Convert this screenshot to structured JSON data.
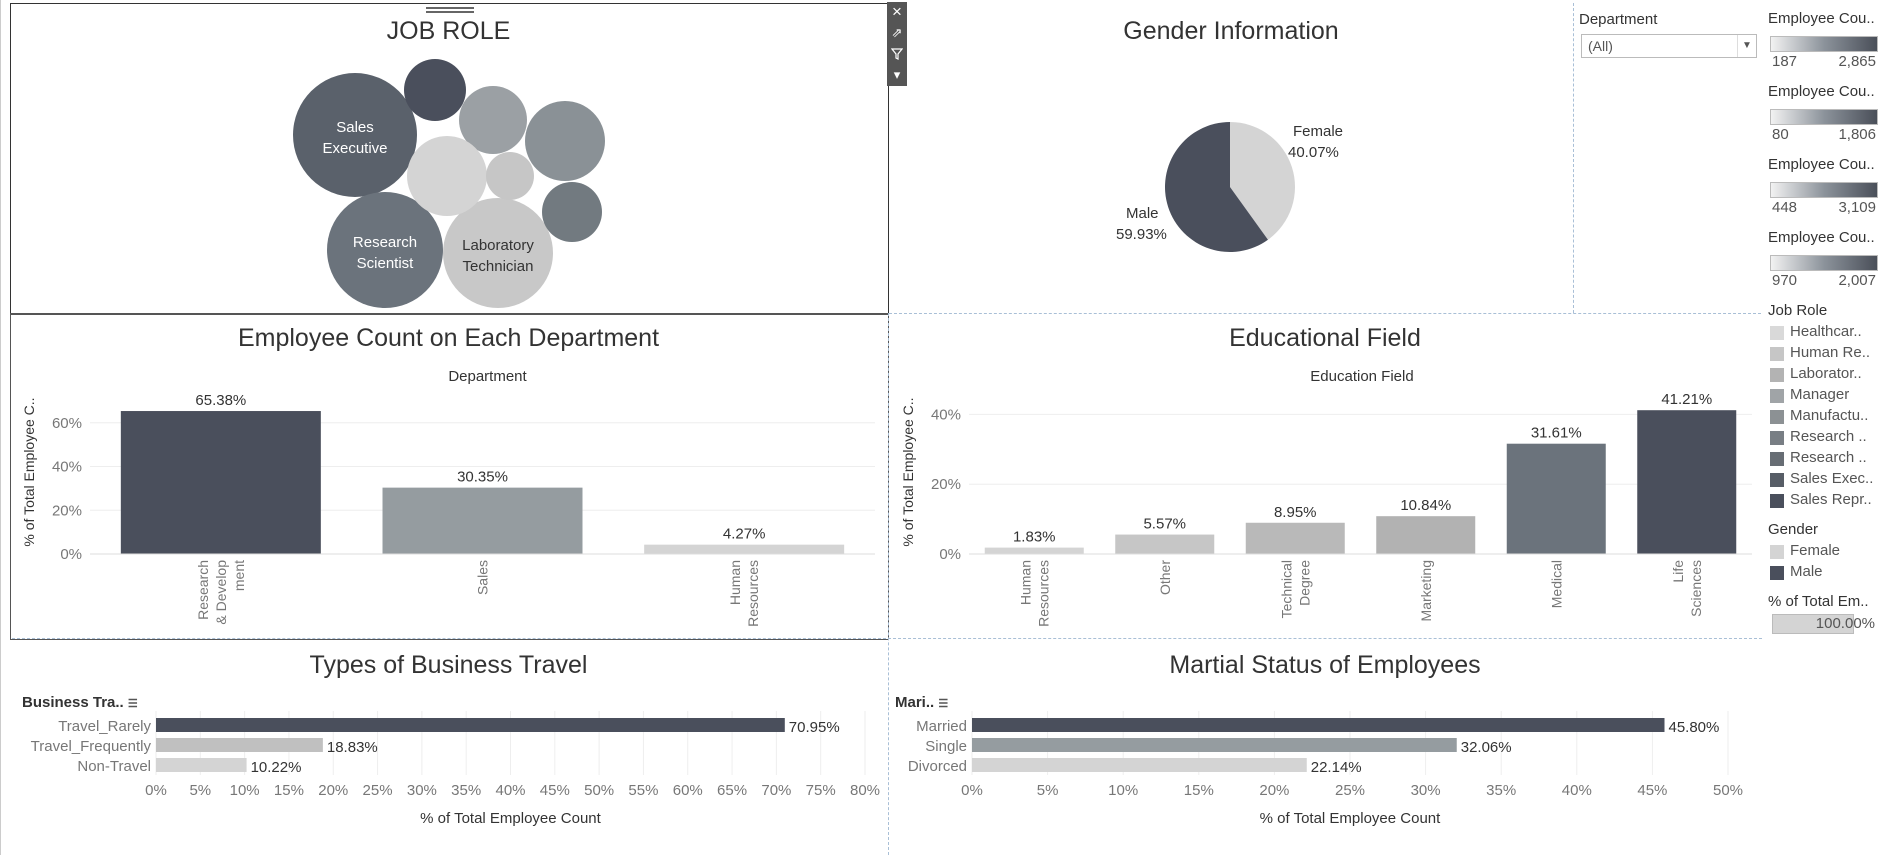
{
  "job_role": {
    "title": "JOB ROLE",
    "bubble_labels": [
      "Sales\nExecutive",
      "Research\nScientist",
      "Laboratory\nTechnician"
    ],
    "bubbles": [
      {
        "label_lines": [
          "Sales",
          "Executive"
        ],
        "color": "#5a616b",
        "text_color": "#ffffff"
      },
      {
        "label_lines": [
          "Research",
          "Scientist"
        ],
        "color": "#6b737c",
        "text_color": "#ffffff"
      },
      {
        "label_lines": [
          "Laboratory",
          "Technician"
        ],
        "color": "#c8c8c8",
        "text_color": "#333333"
      },
      {
        "label_lines": [],
        "color": "#4a4f5c"
      },
      {
        "label_lines": [],
        "color": "#9ba0a4"
      },
      {
        "label_lines": [],
        "color": "#8a9196"
      },
      {
        "label_lines": [],
        "color": "#d4d4d4"
      },
      {
        "label_lines": [],
        "color": "#c6c6c6"
      },
      {
        "label_lines": [],
        "color": "#727a80"
      }
    ],
    "tools": [
      "×",
      "⇗",
      "▼",
      "▾"
    ]
  },
  "gender": {
    "title": "Gender Information",
    "chart_data": {
      "type": "pie",
      "slices": [
        {
          "label": "Female",
          "pct_text": "40.07%",
          "value": 40.07,
          "color": "#d4d4d4"
        },
        {
          "label": "Male",
          "pct_text": "59.93%",
          "value": 59.93,
          "color": "#4a4f5c"
        }
      ]
    }
  },
  "department_filter": {
    "label": "Department",
    "value": "(All)"
  },
  "dept_chart": {
    "title": "Employee Count on Each Department",
    "subtitle": "Department",
    "ylabel": "% of Total Employee C..",
    "chart_data": {
      "type": "bar",
      "categories": [
        [
          "Research",
          "& Develop",
          "ment"
        ],
        [
          "Sales"
        ],
        [
          "Human",
          "Resources"
        ]
      ],
      "values": [
        65.38,
        30.35,
        4.27
      ],
      "labels": [
        "65.38%",
        "30.35%",
        "4.27%"
      ],
      "colors": [
        "#4a4f5c",
        "#959ca0",
        "#d4d4d4"
      ],
      "yticks": [
        "60%",
        "40%",
        "20%",
        "0%"
      ],
      "ytick_values": [
        60,
        40,
        20,
        0
      ],
      "ylim": [
        0,
        75
      ]
    }
  },
  "edu_chart": {
    "title": "Educational Field",
    "subtitle": "Education Field",
    "ylabel": "% of Total Employee C..",
    "chart_data": {
      "type": "bar",
      "categories": [
        [
          "Human",
          "Resources"
        ],
        [
          "Other"
        ],
        [
          "Technical",
          "Degree"
        ],
        [
          "Marketing"
        ],
        [
          "Medical"
        ],
        [
          "Life",
          "Sciences"
        ]
      ],
      "values": [
        1.83,
        5.57,
        8.95,
        10.84,
        31.61,
        41.21
      ],
      "labels": [
        "1.83%",
        "5.57%",
        "8.95%",
        "10.84%",
        "31.61%",
        "41.21%"
      ],
      "colors": [
        "#d4d4d4",
        "#c6c6c6",
        "#b9b9b9",
        "#b2b2b2",
        "#6b737c",
        "#4a4f5c"
      ],
      "yticks": [
        "40%",
        "20%",
        "0%"
      ],
      "ytick_values": [
        40,
        20,
        0
      ],
      "ylim": [
        0,
        47
      ]
    }
  },
  "travel_chart": {
    "title": "Types of Business Travel",
    "header": "Business Tra..",
    "xlabel": "% of Total Employee Count",
    "chart_data": {
      "type": "bar",
      "orientation": "horizontal",
      "categories": [
        "Travel_Rarely",
        "Travel_Frequently",
        "Non-Travel"
      ],
      "values": [
        70.95,
        18.83,
        10.22
      ],
      "labels": [
        "70.95%",
        "18.83%",
        "10.22%"
      ],
      "colors": [
        "#4a4f5c",
        "#c0c0c0",
        "#d4d4d4"
      ],
      "xticks": [
        "0%",
        "5%",
        "10%",
        "15%",
        "20%",
        "25%",
        "30%",
        "35%",
        "40%",
        "45%",
        "50%",
        "55%",
        "60%",
        "65%",
        "70%",
        "75%",
        "80%"
      ],
      "xtick_values": [
        0,
        5,
        10,
        15,
        20,
        25,
        30,
        35,
        40,
        45,
        50,
        55,
        60,
        65,
        70,
        75,
        80
      ],
      "xlim": [
        0,
        80
      ]
    }
  },
  "marital_chart": {
    "title": "Martial Status of Employees",
    "header": "Mari..",
    "xlabel": "% of Total Employee Count",
    "chart_data": {
      "type": "bar",
      "orientation": "horizontal",
      "categories": [
        "Married",
        "Single",
        "Divorced"
      ],
      "values": [
        45.8,
        32.06,
        22.14
      ],
      "labels": [
        "45.80%",
        "32.06%",
        "22.14%"
      ],
      "colors": [
        "#4a4f5c",
        "#959ca0",
        "#d4d4d4"
      ],
      "xticks": [
        "0%",
        "5%",
        "10%",
        "15%",
        "20%",
        "25%",
        "30%",
        "35%",
        "40%",
        "45%",
        "50%"
      ],
      "xtick_values": [
        0,
        5,
        10,
        15,
        20,
        25,
        30,
        35,
        40,
        45,
        50
      ],
      "xlim": [
        0,
        50
      ]
    }
  },
  "legends": {
    "employee_count_ranges": [
      {
        "title": "Employee Cou..",
        "min": "187",
        "max": "2,865"
      },
      {
        "title": "Employee Cou..",
        "min": "80",
        "max": "1,806"
      },
      {
        "title": "Employee Cou..",
        "min": "448",
        "max": "3,109"
      },
      {
        "title": "Employee Cou..",
        "min": "970",
        "max": "2,007"
      }
    ],
    "job_role": {
      "title": "Job Role",
      "items": [
        {
          "label": "Healthcar..",
          "color": "#d9d9d9"
        },
        {
          "label": "Human Re..",
          "color": "#c6c6c6"
        },
        {
          "label": "Laborator..",
          "color": "#b3b3b3"
        },
        {
          "label": "Manager",
          "color": "#a0a4a7"
        },
        {
          "label": "Manufactu..",
          "color": "#8c9194"
        },
        {
          "label": "Research ..",
          "color": "#787e84"
        },
        {
          "label": "Research ..",
          "color": "#676d74"
        },
        {
          "label": "Sales Exec..",
          "color": "#575d66"
        },
        {
          "label": "Sales Repr..",
          "color": "#4a4f5c"
        }
      ]
    },
    "gender": {
      "title": "Gender",
      "items": [
        {
          "label": "Female",
          "color": "#d4d4d4"
        },
        {
          "label": "Male",
          "color": "#4a4f5c"
        }
      ]
    },
    "pct_total": {
      "title": "% of Total Em..",
      "value": "100.00%"
    }
  }
}
